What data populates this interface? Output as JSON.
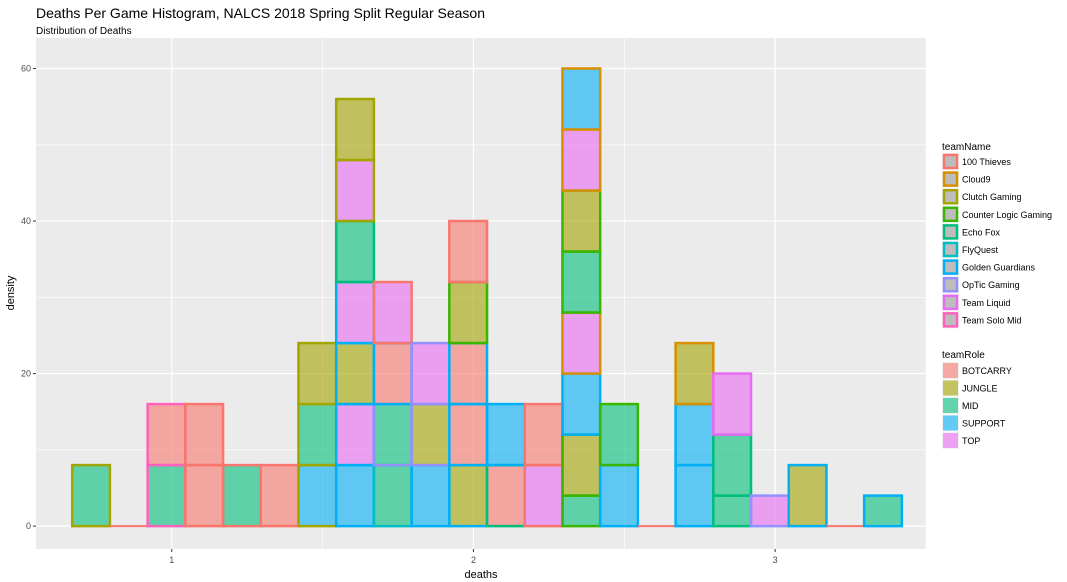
{
  "chart_data": {
    "type": "histogram",
    "title": "Deaths Per Game Histogram, NALCS 2018 Spring Split Regular Season",
    "subtitle": "Distribution of Deaths",
    "xlabel": "deaths",
    "ylabel": "density",
    "xlim": [
      0.55,
      3.5
    ],
    "ylim": [
      -3,
      64
    ],
    "x_ticks": [
      1,
      2,
      3
    ],
    "x_tick_labels": [
      "1",
      "2",
      "3"
    ],
    "y_ticks": [
      0,
      20,
      40,
      60
    ],
    "y_tick_labels": [
      "0",
      "20",
      "40",
      "60"
    ],
    "grid": true,
    "bin_width": 0.125,
    "first_bin_left": 0.67,
    "legend_placement": "right",
    "fill_legend": {
      "title": "teamRole",
      "entries": [
        {
          "label": "BOTCARRY",
          "color": "#F8766D"
        },
        {
          "label": "JUNGLE",
          "color": "#A3A500"
        },
        {
          "label": "MID",
          "color": "#00BF7D"
        },
        {
          "label": "SUPPORT",
          "color": "#00B0F6"
        },
        {
          "label": "TOP",
          "color": "#E76BF3"
        }
      ]
    },
    "color_legend": {
      "title": "teamName",
      "entries": [
        {
          "label": "100 Thieves",
          "color": "#F8766D"
        },
        {
          "label": "Cloud9",
          "color": "#D89000"
        },
        {
          "label": "Clutch Gaming",
          "color": "#A3A500"
        },
        {
          "label": "Counter Logic Gaming",
          "color": "#39B600"
        },
        {
          "label": "Echo Fox",
          "color": "#00BF7D"
        },
        {
          "label": "FlyQuest",
          "color": "#00BFC4"
        },
        {
          "label": "Golden Guardians",
          "color": "#00B0F6"
        },
        {
          "label": "OpTic Gaming",
          "color": "#9590FF"
        },
        {
          "label": "Team Liquid",
          "color": "#E76BF3"
        },
        {
          "label": "Team Solo Mid",
          "color": "#FF62BC"
        }
      ]
    },
    "bins": [
      {
        "segments": [
          {
            "role": "MID",
            "team": "Clutch Gaming",
            "value": 8
          }
        ]
      },
      {
        "segments": []
      },
      {
        "segments": [
          {
            "role": "MID",
            "team": "Team Solo Mid",
            "value": 8
          },
          {
            "role": "BOTCARRY",
            "team": "Team Solo Mid",
            "value": 8
          }
        ]
      },
      {
        "segments": [
          {
            "role": "BOTCARRY",
            "team": "100 Thieves",
            "value": 8
          },
          {
            "role": "BOTCARRY",
            "team": "100 Thieves",
            "value": 8
          }
        ]
      },
      {
        "segments": [
          {
            "role": "MID",
            "team": "100 Thieves",
            "value": 8
          }
        ]
      },
      {
        "segments": [
          {
            "role": "BOTCARRY",
            "team": "100 Thieves",
            "value": 8
          }
        ]
      },
      {
        "segments": [
          {
            "role": "SUPPORT",
            "team": "Clutch Gaming",
            "value": 8
          },
          {
            "role": "MID",
            "team": "Clutch Gaming",
            "value": 8
          },
          {
            "role": "JUNGLE",
            "team": "Clutch Gaming",
            "value": 8
          }
        ]
      },
      {
        "segments": [
          {
            "role": "SUPPORT",
            "team": "Golden Guardians",
            "value": 8
          },
          {
            "role": "TOP",
            "team": "Golden Guardians",
            "value": 8
          },
          {
            "role": "JUNGLE",
            "team": "Golden Guardians",
            "value": 8
          },
          {
            "role": "TOP",
            "team": "Golden Guardians",
            "value": 8
          },
          {
            "role": "MID",
            "team": "Echo Fox",
            "value": 8
          },
          {
            "role": "TOP",
            "team": "Clutch Gaming",
            "value": 8
          },
          {
            "role": "JUNGLE",
            "team": "Clutch Gaming",
            "value": 8
          }
        ]
      },
      {
        "segments": [
          {
            "role": "MID",
            "team": "FlyQuest",
            "value": 8
          },
          {
            "role": "MID",
            "team": "OpTic Gaming",
            "value": 8
          },
          {
            "role": "BOTCARRY",
            "team": "Golden Guardians",
            "value": 8
          },
          {
            "role": "TOP",
            "team": "100 Thieves",
            "value": 8
          }
        ]
      },
      {
        "segments": [
          {
            "role": "SUPPORT",
            "team": "Golden Guardians",
            "value": 8
          },
          {
            "role": "JUNGLE",
            "team": "OpTic Gaming",
            "value": 8
          },
          {
            "role": "TOP",
            "team": "OpTic Gaming",
            "value": 8
          }
        ]
      },
      {
        "segments": [
          {
            "role": "JUNGLE",
            "team": "Golden Guardians",
            "value": 8
          },
          {
            "role": "BOTCARRY",
            "team": "Golden Guardians",
            "value": 8
          },
          {
            "role": "BOTCARRY",
            "team": "Golden Guardians",
            "value": 8
          },
          {
            "role": "JUNGLE",
            "team": "Counter Logic Gaming",
            "value": 8
          },
          {
            "role": "BOTCARRY",
            "team": "100 Thieves",
            "value": 8
          }
        ]
      },
      {
        "segments": [
          {
            "role": "BOTCARRY",
            "team": "Echo Fox",
            "value": 8
          },
          {
            "role": "SUPPORT",
            "team": "Golden Guardians",
            "value": 8
          }
        ]
      },
      {
        "segments": [
          {
            "role": "TOP",
            "team": "100 Thieves",
            "value": 8
          },
          {
            "role": "BOTCARRY",
            "team": "100 Thieves",
            "value": 8
          }
        ]
      },
      {
        "segments": [
          {
            "role": "MID",
            "team": "Counter Logic Gaming",
            "value": 4
          },
          {
            "role": "JUNGLE",
            "team": "Counter Logic Gaming",
            "value": 8
          },
          {
            "role": "SUPPORT",
            "team": "Golden Guardians",
            "value": 8
          },
          {
            "role": "TOP",
            "team": "Cloud9",
            "value": 8
          },
          {
            "role": "MID",
            "team": "Counter Logic Gaming",
            "value": 8
          },
          {
            "role": "JUNGLE",
            "team": "Counter Logic Gaming",
            "value": 8
          },
          {
            "role": "TOP",
            "team": "Cloud9",
            "value": 8
          },
          {
            "role": "SUPPORT",
            "team": "Cloud9",
            "value": 8
          }
        ]
      },
      {
        "segments": [
          {
            "role": "SUPPORT",
            "team": "Golden Guardians",
            "value": 8
          },
          {
            "role": "MID",
            "team": "Counter Logic Gaming",
            "value": 8
          }
        ]
      },
      {
        "segments": []
      },
      {
        "segments": [
          {
            "role": "SUPPORT",
            "team": "Golden Guardians",
            "value": 8
          },
          {
            "role": "SUPPORT",
            "team": "Golden Guardians",
            "value": 8
          },
          {
            "role": "JUNGLE",
            "team": "Cloud9",
            "value": 8
          }
        ]
      },
      {
        "segments": [
          {
            "role": "MID",
            "team": "Echo Fox",
            "value": 4
          },
          {
            "role": "MID",
            "team": "Echo Fox",
            "value": 8
          },
          {
            "role": "TOP",
            "team": "Team Liquid",
            "value": 8
          }
        ]
      },
      {
        "segments": [
          {
            "role": "TOP",
            "team": "OpTic Gaming",
            "value": 4
          }
        ]
      },
      {
        "segments": [
          {
            "role": "JUNGLE",
            "team": "Golden Guardians",
            "value": 8
          }
        ]
      },
      {
        "segments": []
      },
      {
        "segments": [
          {
            "role": "MID",
            "team": "Golden Guardians",
            "value": 4
          }
        ]
      }
    ]
  }
}
